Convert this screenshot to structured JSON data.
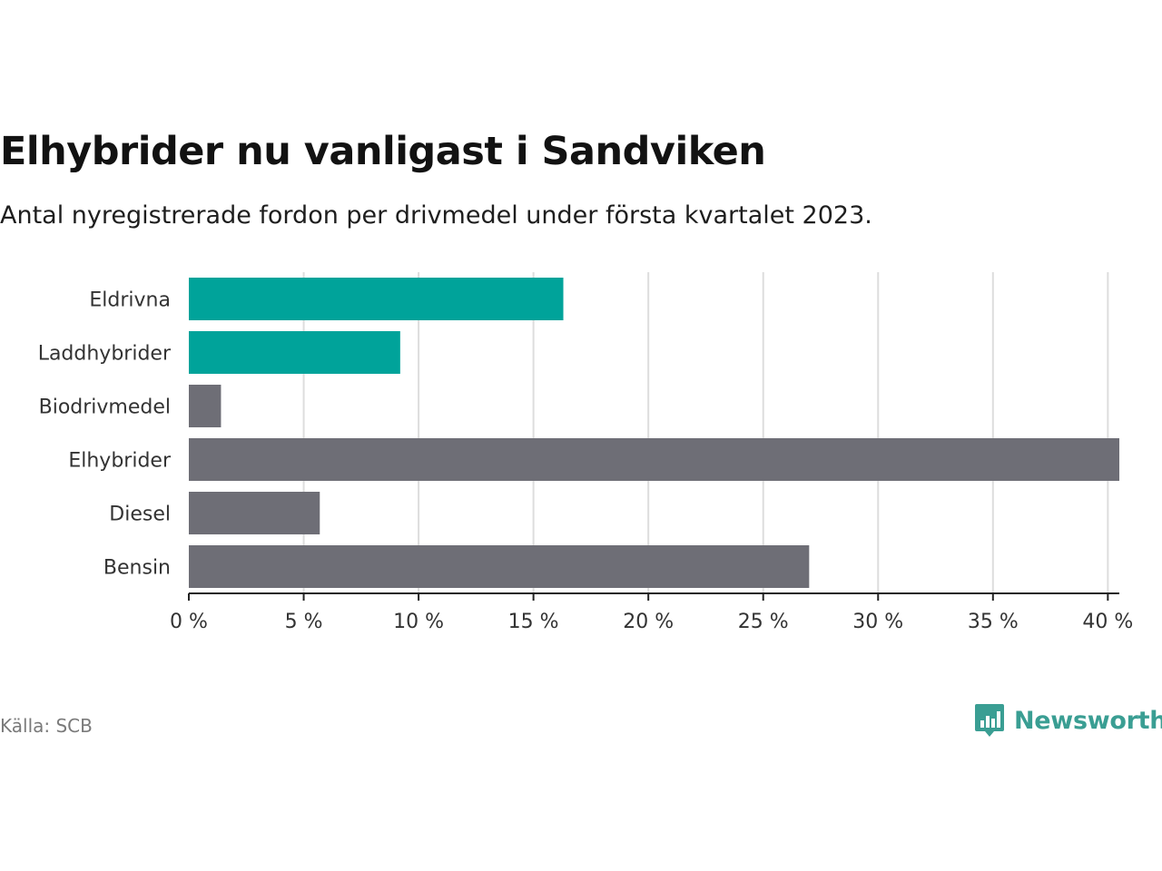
{
  "header": {
    "title": "Elhybrider nu vanligast i Sandviken",
    "subtitle": "Antal nyregistrerade fordon per drivmedel under första kvartalet 2023."
  },
  "footer": {
    "source": "Källa: SCB",
    "brand": "Newsworthy"
  },
  "colors": {
    "highlight": "#00A39A",
    "default": "#6E6E76",
    "brand": "#3A9E93",
    "grid": "#DDDDDD"
  },
  "chart_data": {
    "type": "bar",
    "orientation": "horizontal",
    "categories": [
      "Eldrivna",
      "Laddhybrider",
      "Biodrivmedel",
      "Elhybrider",
      "Diesel",
      "Bensin"
    ],
    "values": [
      16.3,
      9.2,
      1.4,
      40.5,
      5.7,
      27.0
    ],
    "highlighted": [
      true,
      true,
      false,
      false,
      false,
      false
    ],
    "xlim": [
      0,
      40.5
    ],
    "xticks": [
      0,
      5,
      10,
      15,
      20,
      25,
      30,
      35,
      40
    ],
    "tick_labels": [
      "0 %",
      "5 %",
      "10 %",
      "15 %",
      "20 %",
      "25 %",
      "30 %",
      "35 %",
      "40 %"
    ],
    "grid": true,
    "value_unit": "%"
  }
}
